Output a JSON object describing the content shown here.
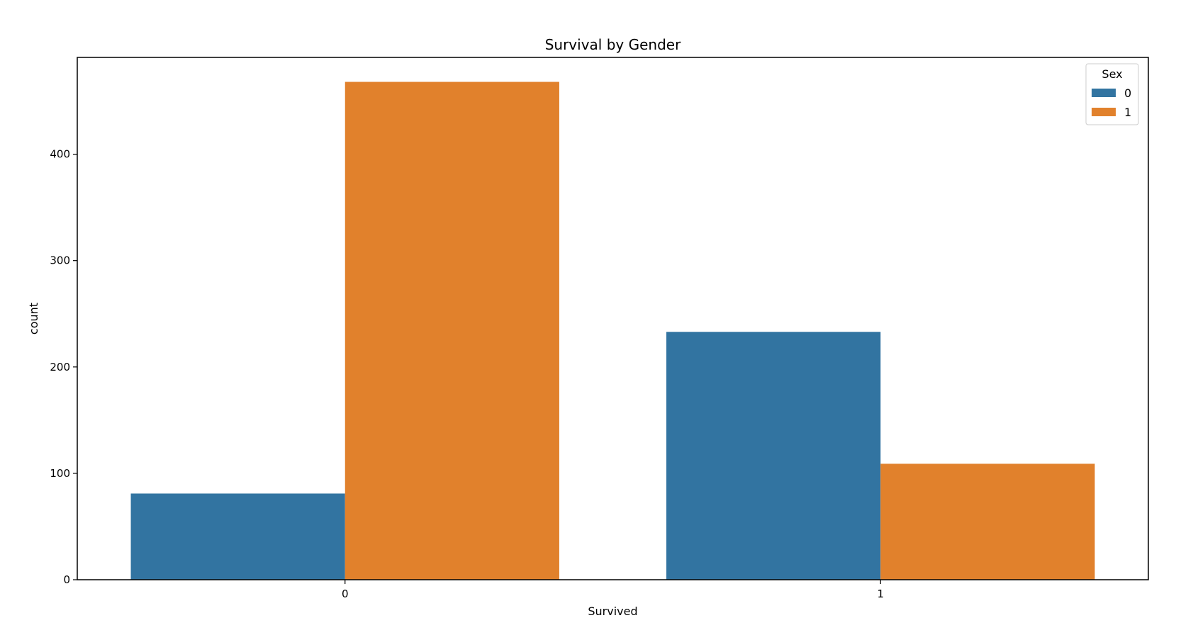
{
  "chart_data": {
    "type": "bar",
    "title": "Survival by Gender",
    "xlabel": "Survived",
    "ylabel": "count",
    "categories": [
      "0",
      "1"
    ],
    "series": [
      {
        "name": "0",
        "values": [
          81,
          233
        ],
        "color": "#3274a1"
      },
      {
        "name": "1",
        "values": [
          468,
          109
        ],
        "color": "#e1812c"
      }
    ],
    "ylim": [
      0,
      491
    ],
    "yticks": [
      0,
      100,
      200,
      300,
      400
    ],
    "grid": false,
    "legend": {
      "title": "Sex",
      "placement": "top-right"
    }
  }
}
